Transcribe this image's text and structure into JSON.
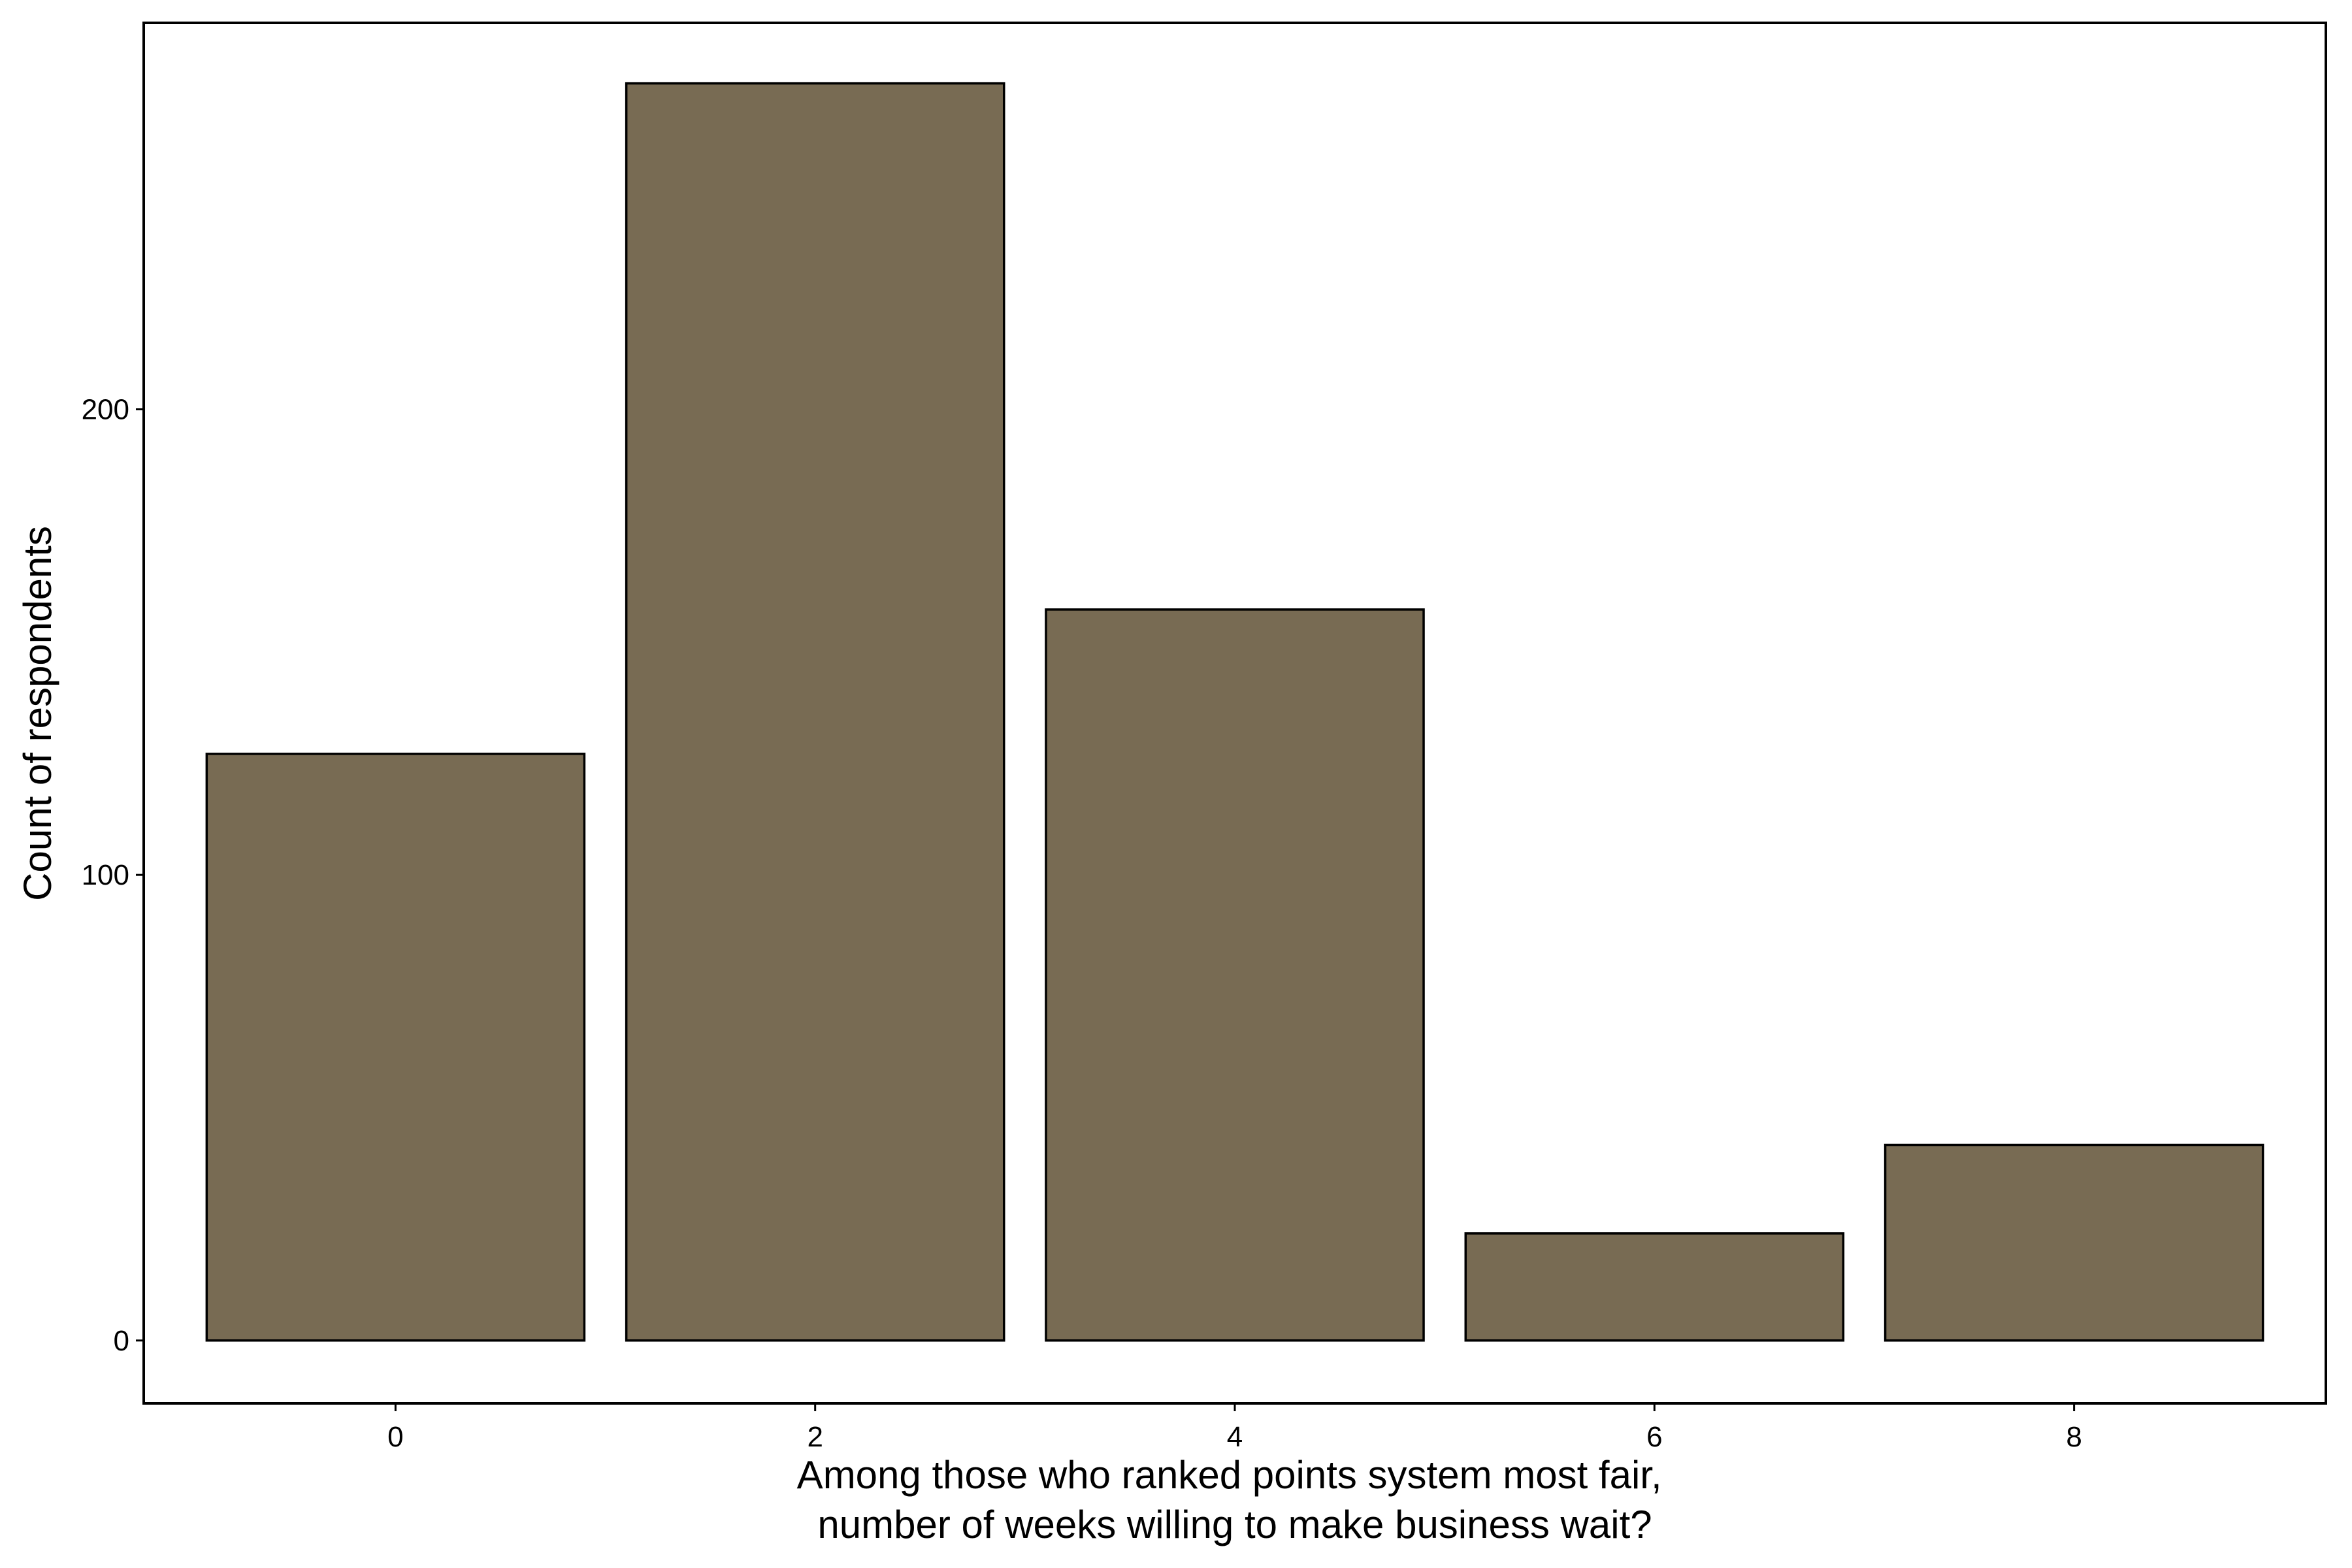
{
  "chart_data": {
    "type": "bar",
    "title": "",
    "x": [
      0,
      2,
      4,
      6,
      8
    ],
    "values": [
      126,
      270,
      157,
      23,
      42
    ],
    "xlabel_lines": [
      "Among those who ranked points system most fair,",
      "number of weeks willing to make business wait?"
    ],
    "ylabel": "Count of respondents",
    "x_ticks": [
      0,
      2,
      4,
      6,
      8
    ],
    "y_ticks": [
      0,
      100,
      200
    ],
    "xlim": [
      -1.2,
      9.2
    ],
    "ylim": [
      -13.5,
      283
    ],
    "bar_width": 1.8,
    "grid": false,
    "legend": "none",
    "colors": {
      "bar_fill": "#786b53",
      "bar_stroke": "#000000",
      "axis": "#000000",
      "background": "#ffffff"
    }
  }
}
